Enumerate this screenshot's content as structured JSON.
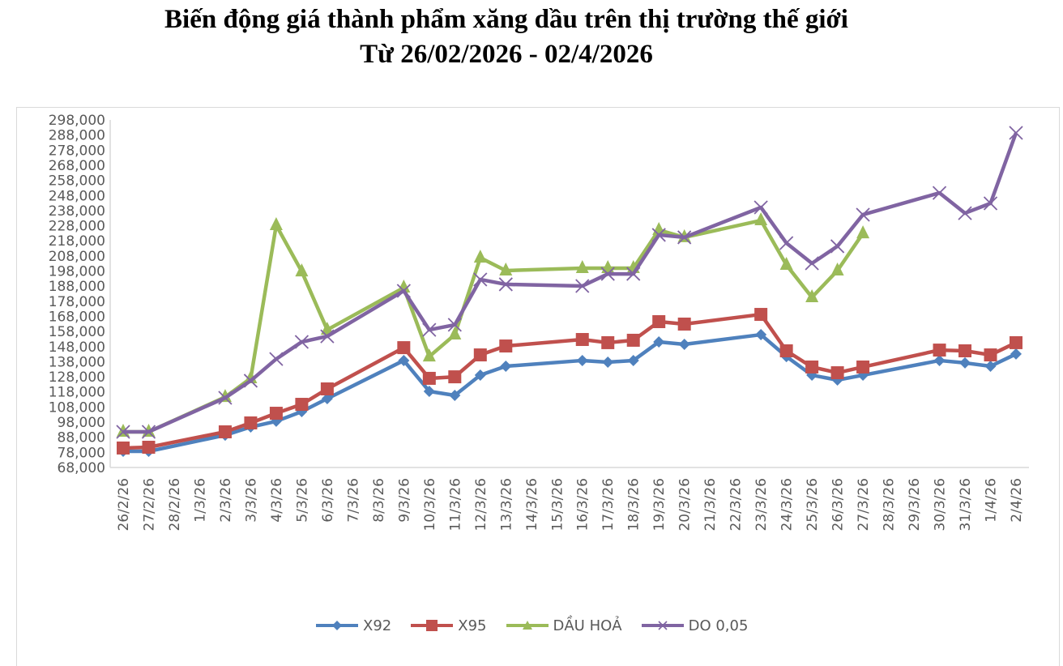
{
  "title": {
    "line1": "Biến động giá thành phẩm xăng dầu trên thị trường thế giới",
    "line2": "Từ 26/02/2026 - 02/4/2026"
  },
  "legend": [
    {
      "name": "X92",
      "color": "#4f81bd",
      "marker": "diamond"
    },
    {
      "name": "X95",
      "color": "#c0504d",
      "marker": "square"
    },
    {
      "name": "DẦU HOẢ",
      "color": "#9bbb59",
      "marker": "triangle"
    },
    {
      "name": "DO 0,05",
      "color": "#8064a2",
      "marker": "x"
    }
  ],
  "chart_data": {
    "type": "line",
    "title": "Biến động giá thành phẩm xăng dầu trên thị trường thế giới — Từ 26/02/2026 - 02/4/2026",
    "xlabel": "",
    "ylabel": "",
    "ylim": [
      68000,
      298000
    ],
    "ytick_step": 10000,
    "yticks": [
      "68,000",
      "78,000",
      "88,000",
      "98,000",
      "108,000",
      "118,000",
      "128,000",
      "138,000",
      "148,000",
      "158,000",
      "168,000",
      "178,000",
      "188,000",
      "198,000",
      "208,000",
      "218,000",
      "228,000",
      "238,000",
      "248,000",
      "258,000",
      "268,000",
      "278,000",
      "288,000",
      "298,000"
    ],
    "grid": false,
    "legend_position": "bottom",
    "categories": [
      "26/2/26",
      "27/2/26",
      "28/2/26",
      "1/3/26",
      "2/3/26",
      "3/3/26",
      "4/3/26",
      "5/3/26",
      "6/3/26",
      "7/3/26",
      "8/3/26",
      "9/3/26",
      "10/3/26",
      "11/3/26",
      "12/3/26",
      "13/3/26",
      "14/3/26",
      "15/3/26",
      "16/3/26",
      "17/3/26",
      "18/3/26",
      "19/3/26",
      "20/3/26",
      "21/3/26",
      "22/3/26",
      "23/3/26",
      "24/3/26",
      "25/3/26",
      "26/3/26",
      "27/3/26",
      "28/3/26",
      "29/3/26",
      "30/3/26",
      "31/3/26",
      "1/4/26",
      "2/4/26"
    ],
    "series": [
      {
        "name": "X92",
        "color": "#4f81bd",
        "marker": "diamond",
        "values": [
          78700,
          78700,
          null,
          null,
          89400,
          94800,
          98600,
          105000,
          113600,
          null,
          null,
          138800,
          118400,
          115700,
          129100,
          135000,
          null,
          null,
          138800,
          137700,
          138800,
          151100,
          149500,
          null,
          null,
          155900,
          141400,
          129100,
          125900,
          129100,
          null,
          null,
          138800,
          137200,
          135000,
          143100
        ]
      },
      {
        "name": "X95",
        "color": "#c0504d",
        "marker": "square",
        "values": [
          80900,
          81400,
          null,
          null,
          91600,
          97500,
          103900,
          109800,
          120000,
          null,
          null,
          147300,
          127000,
          128000,
          142500,
          148400,
          null,
          null,
          152700,
          150600,
          152200,
          164500,
          162900,
          null,
          null,
          169300,
          145200,
          134500,
          130700,
          134500,
          null,
          null,
          145700,
          145200,
          142500,
          150600
        ]
      },
      {
        "name": "DẦU HOẢ",
        "color": "#9bbb59",
        "marker": "triangle",
        "values": [
          91600,
          91600,
          null,
          null,
          114600,
          127000,
          228300,
          197700,
          159100,
          null,
          null,
          187000,
          141400,
          155900,
          206800,
          198300,
          null,
          null,
          199900,
          199900,
          199900,
          225100,
          220300,
          null,
          null,
          231500,
          202000,
          180600,
          198300,
          222900,
          null,
          null,
          null,
          null,
          null,
          null
        ]
      },
      {
        "name": "DO 0,05",
        "color": "#8064a2",
        "marker": "x",
        "values": [
          91600,
          91600,
          null,
          null,
          114100,
          125400,
          139800,
          151100,
          154800,
          null,
          null,
          184900,
          159100,
          162400,
          192400,
          189200,
          null,
          null,
          188100,
          196100,
          196100,
          221900,
          220300,
          null,
          null,
          240100,
          216500,
          203100,
          214400,
          235300,
          null,
          null,
          249700,
          236300,
          242800,
          289400
        ]
      }
    ]
  }
}
